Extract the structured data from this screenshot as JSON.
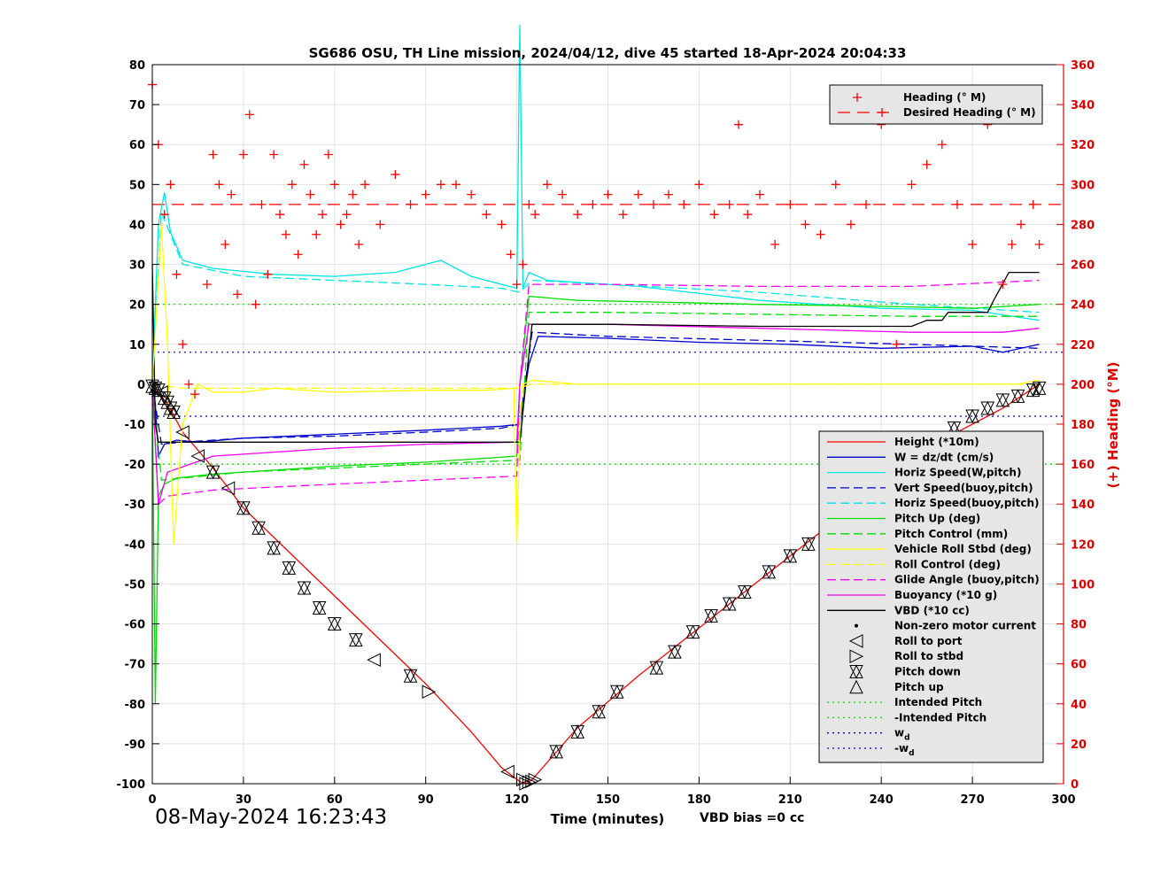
{
  "footer": {
    "timestamp": "08-May-2024 16:23:43",
    "vbd_bias": "VBD bias =0 cc"
  },
  "chart_data": {
    "type": "line",
    "title": "SG686 OSU, TH Line mission, 2024/04/12, dive 45 started 18-Apr-2024 20:04:33",
    "xlabel": "Time (minutes)",
    "ylabel": "",
    "y2label": "(+) Heading (°M)",
    "xlim": [
      0,
      300
    ],
    "ylim": [
      -100,
      80
    ],
    "y2lim": [
      0,
      360
    ],
    "xticks": [
      0,
      30,
      60,
      90,
      120,
      150,
      180,
      210,
      240,
      270,
      300
    ],
    "yticks": [
      80,
      70,
      60,
      50,
      40,
      30,
      20,
      10,
      0,
      -10,
      -20,
      -30,
      -40,
      -50,
      -60,
      -70,
      -80,
      -90,
      -100
    ],
    "y2ticks": [
      360,
      340,
      320,
      300,
      280,
      260,
      240,
      220,
      200,
      180,
      160,
      140,
      120,
      100,
      80,
      60,
      40,
      20,
      0
    ],
    "grid": true,
    "colors": {
      "height": "#ff0000",
      "w": "#0000cc",
      "horiz": "#00e5e5",
      "vert": "#0000cc",
      "pitch": "#00dd00",
      "roll": "#ffff00",
      "glide": "#ff00ff",
      "buoy": "#ee00ee",
      "vbd": "#000000",
      "heading": "#ff0000",
      "heading_axis": "#e00000"
    },
    "legend_top": {
      "position": "top-right",
      "entries": [
        "Heading (° M)",
        "Desired Heading (° M)"
      ]
    },
    "legend_main": {
      "position": "bottom-right",
      "entries": [
        {
          "label": "Height (*10m)",
          "style": "line",
          "color": "#ff0000",
          "dash": ""
        },
        {
          "label": "W = dz/dt (cm/s)",
          "style": "line",
          "color": "#0000cc",
          "dash": ""
        },
        {
          "label": "Horiz Speed(W,pitch)",
          "style": "line",
          "color": "#00e5e5",
          "dash": ""
        },
        {
          "label": "Vert Speed(buoy,pitch)",
          "style": "line",
          "color": "#0000cc",
          "dash": "10,5"
        },
        {
          "label": "Horiz Speed(buoy,pitch)",
          "style": "line",
          "color": "#00e5e5",
          "dash": "10,5"
        },
        {
          "label": "Pitch Up (deg)",
          "style": "line",
          "color": "#00dd00",
          "dash": ""
        },
        {
          "label": "Pitch Control (mm)",
          "style": "line",
          "color": "#00dd00",
          "dash": "10,5"
        },
        {
          "label": "Vehicle Roll Stbd (deg)",
          "style": "line",
          "color": "#ffff00",
          "dash": ""
        },
        {
          "label": "Roll Control (deg)",
          "style": "line",
          "color": "#ffff00",
          "dash": "10,5"
        },
        {
          "label": "Glide Angle (buoy,pitch)",
          "style": "line",
          "color": "#ff00ff",
          "dash": "10,5"
        },
        {
          "label": "Buoyancy (*10 g)",
          "style": "line",
          "color": "#ee00ee",
          "dash": ""
        },
        {
          "label": "VBD (*10 cc)",
          "style": "line",
          "color": "#000000",
          "dash": ""
        },
        {
          "label": "Non-zero motor current",
          "style": "dot",
          "color": "#000000",
          "dash": ""
        },
        {
          "label": "Roll to port",
          "style": "tri-left",
          "color": "#000000",
          "dash": ""
        },
        {
          "label": "Roll to stbd",
          "style": "tri-right",
          "color": "#000000",
          "dash": ""
        },
        {
          "label": "Pitch down",
          "style": "tri-down",
          "color": "#000000",
          "dash": ""
        },
        {
          "label": "Pitch up",
          "style": "tri-up",
          "color": "#000000",
          "dash": ""
        },
        {
          "label": "Intended Pitch",
          "style": "line",
          "color": "#00dd00",
          "dash": "2,4"
        },
        {
          "label": "-Intended Pitch",
          "style": "line",
          "color": "#00dd00",
          "dash": "2,4"
        },
        {
          "label": "w",
          "sub": "d",
          "style": "line",
          "color": "#0000cc",
          "dash": "2,4"
        },
        {
          "label": "-w",
          "sub": "d",
          "style": "line",
          "color": "#0000cc",
          "dash": "2,4"
        }
      ]
    },
    "reference_lines": [
      {
        "name": "Intended Pitch",
        "y": 20,
        "color": "#00dd00"
      },
      {
        "name": "-Intended Pitch",
        "y": -20,
        "color": "#00dd00"
      },
      {
        "name": "wd",
        "y": 8,
        "color": "#0000cc"
      },
      {
        "name": "-wd",
        "y": -8,
        "color": "#0000cc"
      }
    ],
    "series": [
      {
        "name": "Height (*10m)",
        "key": "height",
        "dash": "",
        "x": [
          0,
          5,
          10,
          20,
          30,
          45,
          60,
          75,
          90,
          105,
          115,
          121,
          123,
          125,
          140,
          160,
          180,
          200,
          220,
          240,
          260,
          280,
          292
        ],
        "y": [
          0,
          -5,
          -12,
          -21,
          -31,
          -42,
          -53,
          -64,
          -75,
          -87,
          -96,
          -99.5,
          -100,
          -99,
          -86,
          -73,
          -61,
          -49,
          -37,
          -25,
          -14,
          -6,
          0
        ]
      },
      {
        "name": "W = dz/dt (cm/s)",
        "key": "w",
        "dash": "",
        "x": [
          0,
          1,
          2,
          4,
          8,
          15,
          30,
          60,
          90,
          115,
          121,
          124,
          127,
          150,
          180,
          210,
          240,
          270,
          280,
          292
        ],
        "y": [
          0,
          -5,
          -18,
          -15,
          -14,
          -14.5,
          -13.5,
          -12.5,
          -11.5,
          -10.5,
          -10,
          5,
          12,
          11.5,
          10.5,
          10,
          9,
          9.5,
          8,
          10
        ]
      },
      {
        "name": "Horiz Speed(W,pitch)",
        "key": "horiz",
        "dash": "",
        "x": [
          0,
          2,
          4,
          6,
          10,
          20,
          40,
          60,
          80,
          95,
          105,
          120,
          121,
          122,
          124,
          130,
          160,
          200,
          240,
          270,
          292
        ],
        "y": [
          0,
          40,
          48,
          38,
          31,
          29,
          27.5,
          27,
          28,
          31,
          27,
          24,
          90,
          24,
          28,
          26,
          24.5,
          21,
          19,
          18.5,
          16
        ]
      },
      {
        "name": "Vert Speed(buoy,pitch)",
        "key": "vert",
        "dash": "10,5",
        "x": [
          0,
          3,
          10,
          30,
          60,
          90,
          115,
          121,
          125,
          150,
          200,
          250,
          292
        ],
        "y": [
          0,
          -15,
          -14.5,
          -13.5,
          -13,
          -12,
          -11,
          -10,
          13,
          12,
          11,
          10,
          9
        ]
      },
      {
        "name": "Horiz Speed(buoy,pitch)",
        "key": "horiz",
        "dash": "10,5",
        "x": [
          0,
          3,
          10,
          30,
          60,
          90,
          115,
          121,
          125,
          150,
          200,
          250,
          292
        ],
        "y": [
          0,
          43,
          30,
          27,
          26,
          25,
          24,
          23,
          26,
          25,
          23,
          20,
          18
        ]
      },
      {
        "name": "Pitch Up (deg)",
        "key": "pitch",
        "dash": "",
        "x": [
          0,
          1,
          2,
          4,
          8,
          20,
          40,
          60,
          90,
          120,
          121,
          124,
          140,
          170,
          200,
          240,
          270,
          292
        ],
        "y": [
          0,
          -80,
          -28,
          -25,
          -23.5,
          -22.5,
          -21.5,
          -20.5,
          -19.5,
          -18,
          0,
          22,
          21,
          20.5,
          20,
          19.5,
          19,
          20
        ]
      },
      {
        "name": "Pitch Control (mm)",
        "key": "pitch",
        "dash": "10,5",
        "x": [
          0,
          3,
          10,
          30,
          60,
          90,
          121,
          124,
          150,
          200,
          250,
          292
        ],
        "y": [
          0,
          -24,
          -23.5,
          -22,
          -21,
          -20,
          -19,
          18,
          18,
          17.5,
          17,
          17
        ]
      },
      {
        "name": "Glide Angle (buoy,pitch)",
        "key": "glide",
        "dash": "10,5",
        "x": [
          0,
          2,
          5,
          20,
          60,
          90,
          120,
          121,
          124,
          150,
          200,
          250,
          292
        ],
        "y": [
          0,
          -30,
          -28,
          -26.5,
          -25,
          -24,
          -23,
          0,
          25,
          25,
          24.5,
          24.5,
          26
        ]
      },
      {
        "name": "Buoyancy (*10 g)",
        "key": "buoy",
        "dash": "",
        "x": [
          0,
          2,
          5,
          20,
          60,
          90,
          120,
          121,
          124,
          150,
          200,
          250,
          280,
          292
        ],
        "y": [
          0,
          -30,
          -22,
          -18,
          -16,
          -15,
          -14.5,
          0,
          15,
          15,
          14,
          13,
          13,
          14
        ]
      },
      {
        "name": "VBD (*10 cc)",
        "key": "vbd",
        "dash": "",
        "x": [
          0,
          1,
          2,
          120,
          121,
          125,
          150,
          200,
          250,
          255,
          260,
          262,
          275,
          277,
          282,
          292
        ],
        "y": [
          30,
          -10,
          -14.5,
          -14.5,
          -14.5,
          15,
          15,
          14.5,
          14.5,
          16,
          16,
          18,
          18,
          21,
          28,
          28
        ]
      },
      {
        "name": "Vehicle Roll Stbd (deg)",
        "key": "roll",
        "dash": "",
        "x": [
          0,
          3,
          5,
          7,
          10,
          15,
          20,
          30,
          40,
          60,
          90,
          110,
          119,
          120,
          121,
          122,
          125,
          140,
          170,
          200,
          230,
          260,
          285,
          292
        ],
        "y": [
          0,
          40,
          10,
          -40,
          -10,
          0,
          -2,
          -2,
          -1,
          -2,
          -1.5,
          -1.5,
          -1,
          -40,
          -10,
          0,
          1,
          0,
          0,
          0,
          0,
          0,
          0,
          1
        ]
      },
      {
        "name": "Roll Control (deg)",
        "key": "roll",
        "dash": "10,5",
        "x": [
          0,
          10,
          60,
          120,
          125,
          200,
          292
        ],
        "y": [
          0,
          -1,
          -1,
          -1,
          0,
          0,
          0
        ]
      }
    ],
    "heading": {
      "name": "Heading (° M)",
      "x": [
        0,
        2,
        4,
        6,
        8,
        10,
        12,
        14,
        18,
        20,
        22,
        24,
        26,
        28,
        30,
        32,
        34,
        36,
        38,
        40,
        42,
        44,
        46,
        48,
        50,
        52,
        54,
        56,
        58,
        60,
        62,
        64,
        66,
        68,
        70,
        75,
        80,
        85,
        90,
        95,
        100,
        105,
        110,
        115,
        118,
        120,
        122,
        124,
        126,
        130,
        135,
        140,
        145,
        150,
        155,
        160,
        165,
        170,
        175,
        180,
        185,
        190,
        193,
        196,
        200,
        205,
        210,
        215,
        220,
        225,
        230,
        235,
        240,
        245,
        250,
        255,
        260,
        265,
        270,
        275,
        280,
        283,
        286,
        290,
        292
      ],
      "y": [
        350,
        320,
        285,
        300,
        255,
        220,
        200,
        195,
        250,
        315,
        300,
        270,
        295,
        245,
        315,
        335,
        240,
        290,
        255,
        315,
        285,
        275,
        300,
        265,
        310,
        295,
        275,
        285,
        315,
        300,
        280,
        285,
        295,
        270,
        300,
        280,
        305,
        290,
        295,
        300,
        300,
        295,
        285,
        280,
        265,
        250,
        260,
        290,
        285,
        300,
        295,
        285,
        290,
        295,
        285,
        295,
        290,
        295,
        290,
        300,
        285,
        290,
        330,
        285,
        295,
        270,
        290,
        280,
        275,
        300,
        280,
        290,
        330,
        220,
        300,
        310,
        320,
        290,
        270,
        330,
        250,
        270,
        280,
        290,
        270
      ]
    },
    "desired_heading": {
      "name": "Desired Heading (° M)",
      "y": 290
    },
    "pitch_markers": {
      "x": [
        0,
        1,
        2,
        3,
        4,
        5,
        6,
        7,
        10,
        15,
        20,
        25,
        30,
        35,
        40,
        45,
        50,
        55,
        60,
        67,
        73,
        85,
        91,
        117,
        122,
        123,
        124,
        125,
        126,
        133,
        140,
        147,
        153,
        166,
        172,
        178,
        184,
        190,
        195,
        203,
        210,
        216,
        222,
        228,
        234,
        240,
        246,
        252,
        258,
        264,
        270,
        275,
        280,
        285,
        290,
        292
      ],
      "y": [
        -0.5,
        -1,
        -1.5,
        -2,
        -3.5,
        -4.5,
        -6,
        -7,
        -12,
        -18,
        -22,
        -26,
        -31,
        -36,
        -41,
        -46,
        -51,
        -56,
        -60,
        -64,
        -69,
        -73,
        -77,
        -97,
        -99,
        -100,
        -99.6,
        -99.4,
        -99,
        -92,
        -87,
        -82,
        -77,
        -71,
        -67,
        -62,
        -58,
        -55,
        -52,
        -47,
        -43,
        -40,
        -36,
        -33,
        -30,
        -26,
        -22,
        -19,
        -15,
        -11,
        -8,
        -6,
        -4,
        -3,
        -1.5,
        -1
      ],
      "kind": [
        "down",
        "down",
        "down",
        "left",
        "down",
        "down",
        "down",
        "down",
        "left",
        "left",
        "down",
        "left",
        "down",
        "down",
        "down",
        "down",
        "down",
        "down",
        "down",
        "down",
        "left",
        "down",
        "right",
        "left",
        "right",
        "right",
        "right",
        "right",
        "right",
        "down",
        "down",
        "down",
        "down",
        "down",
        "down",
        "down",
        "down",
        "down",
        "down",
        "down",
        "down",
        "down",
        "down",
        "down",
        "down",
        "down",
        "down",
        "down",
        "down",
        "down",
        "down",
        "down",
        "down",
        "down",
        "down",
        "down"
      ]
    }
  }
}
